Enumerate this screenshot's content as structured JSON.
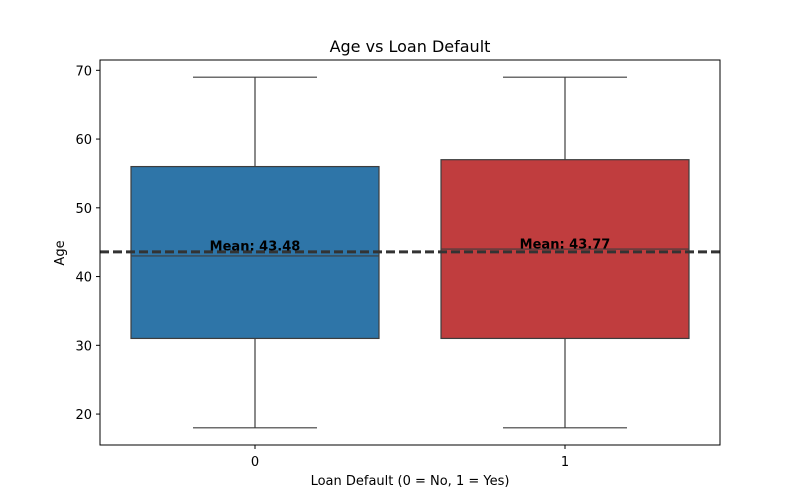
{
  "chart_data": {
    "type": "box",
    "title": "Age vs Loan Default",
    "xlabel": "Loan Default (0 = No, 1 = Yes)",
    "ylabel": "Age",
    "ylim": [
      15.5,
      71.5
    ],
    "yticks": [
      20,
      30,
      40,
      50,
      60,
      70
    ],
    "categories": [
      "0",
      "1"
    ],
    "boxes": [
      {
        "category": "0",
        "min": 18,
        "q1": 31,
        "median": 43,
        "q3": 56,
        "max": 69,
        "mean": 43.48,
        "mean_label": "Mean: 43.48",
        "color": "#2e75a8"
      },
      {
        "category": "1",
        "min": 18,
        "q1": 31,
        "median": 44,
        "q3": 57,
        "max": 69,
        "mean": 43.77,
        "mean_label": "Mean: 43.77",
        "color": "#c03d3e"
      }
    ],
    "overall_mean_line": 43.6,
    "grid": false,
    "legend": "none"
  }
}
